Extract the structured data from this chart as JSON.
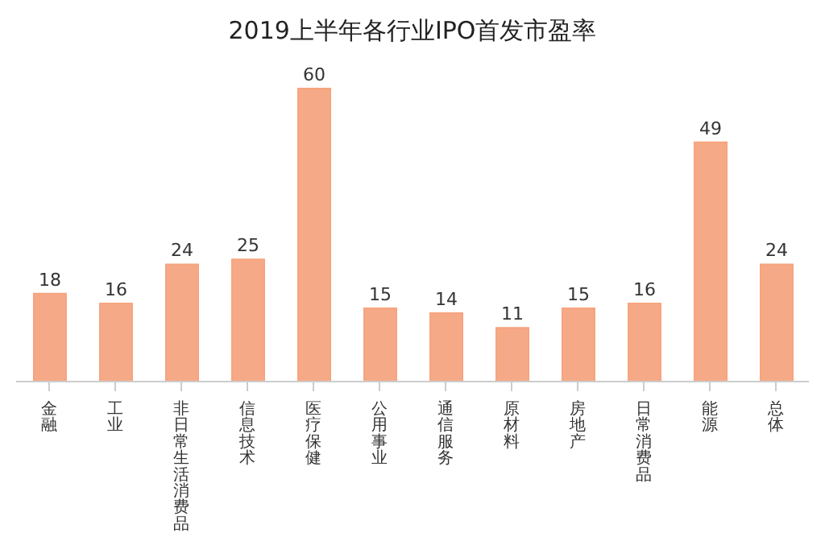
{
  "chart_data": {
    "type": "bar",
    "title": "2019上半年各行业IPO首发市盈率",
    "categories": [
      "金融",
      "工业",
      "非日常生活消费品",
      "信息技术",
      "医疗保健",
      "公用事业",
      "通信服务",
      "原材料",
      "房地产",
      "日常消费品",
      "能源",
      "总体"
    ],
    "values": [
      18,
      16,
      24,
      25,
      60,
      15,
      14,
      11,
      15,
      16,
      49,
      24
    ],
    "color": "#f6a47f",
    "data_labels": true,
    "grid": false,
    "legend": false
  }
}
